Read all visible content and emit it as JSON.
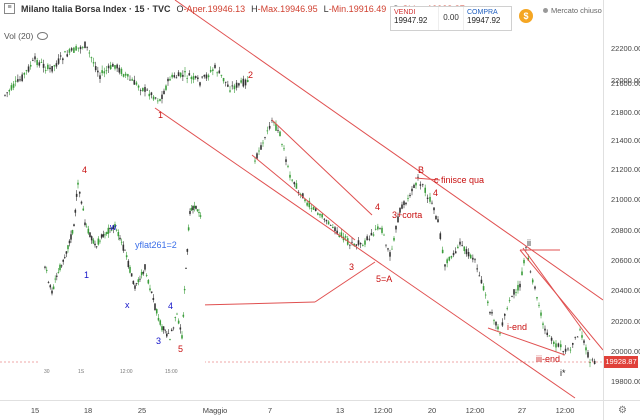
{
  "legend": {
    "symbol": "Milano Italia Borsa Index · 15 · TVC",
    "open_label": "O",
    "open": "-Aper.19946.13",
    "high_label": "H",
    "high": "-Max.19946.95",
    "low_label": "L",
    "low": "-Min.19916.49",
    "close_label": "C",
    "close": "-Chius.19928.87"
  },
  "volume": {
    "label": "Vol (20)"
  },
  "trade": {
    "sell_label": "VENDI",
    "sell_price": "19947.92",
    "spread": "0.00",
    "buy_label": "COMPRA",
    "buy_price": "19947.92",
    "market_status": "Mercato chiuso",
    "sell_color": "#d03030",
    "buy_color": "#2060c0"
  },
  "price_axis": {
    "ticks": [
      "22200.00",
      "22000.00",
      "21800.00",
      "21600.00",
      "21400.00",
      "21200.00",
      "21000.00",
      "20800.00",
      "20600.00",
      "20400.00",
      "20200.00",
      "20000.00",
      "19800.00"
    ],
    "last_price": "19928.87",
    "last_price_color": "#e0413a"
  },
  "time_axis": {
    "ticks": [
      "15",
      "18",
      "25",
      "Maggio",
      "7",
      "13",
      "12:00",
      "20",
      "12:00",
      "27",
      "12:00"
    ]
  },
  "annotations": {
    "main": {
      "w1": "1",
      "w2": "2",
      "w3": "3",
      "w4": "4",
      "w3corta": "3+corta",
      "w5a": "5=A",
      "b": "B",
      "b4": "4",
      "c_text": "c finisce qua",
      "ii": "ii",
      "iend": "i-end",
      "iiiend": "iii-end",
      "istar": "i*"
    },
    "inset": {
      "i4": "4",
      "iw": "w",
      "i1": "1",
      "ix": "x",
      "i4b": "4",
      "i3": "3",
      "i5": "5",
      "yflat": "yflat261=2",
      "x_ticks": [
        "30",
        "1S",
        "12:00",
        "15:00"
      ]
    }
  },
  "colors": {
    "trendline": "#e05050",
    "candle_up": "#3a9c3a",
    "candle_down": "#333333",
    "annotation_red": "#c81010",
    "annotation_blue": "#1414c8"
  }
}
